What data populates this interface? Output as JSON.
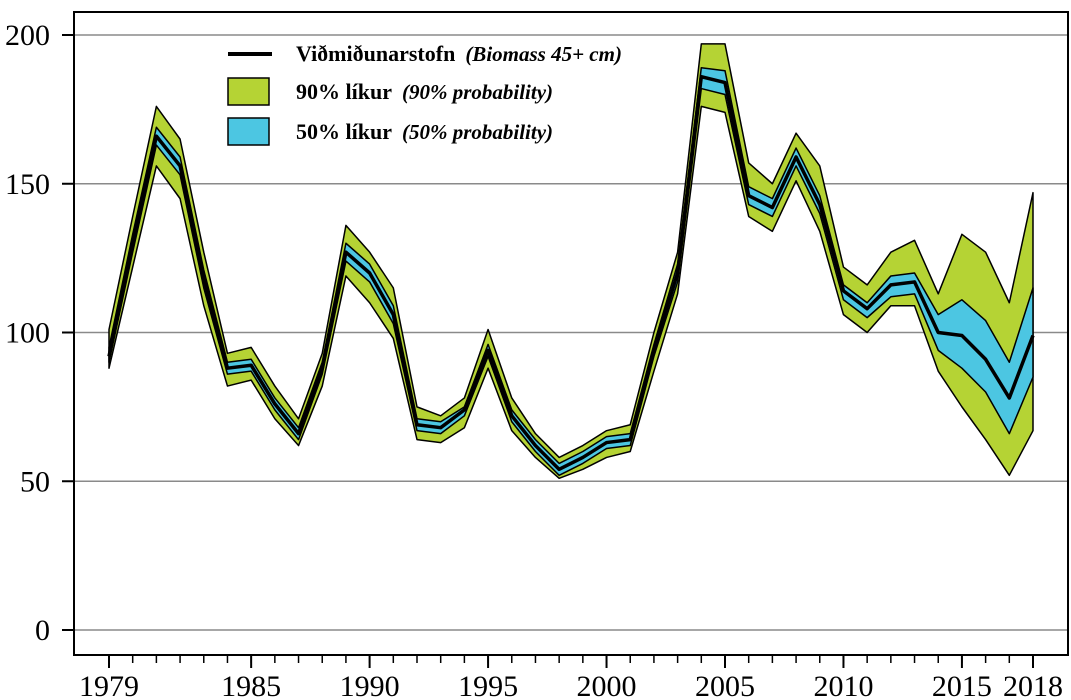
{
  "chart_data": {
    "type": "area",
    "x": [
      1979,
      1980,
      1981,
      1982,
      1983,
      1984,
      1985,
      1986,
      1987,
      1988,
      1989,
      1990,
      1991,
      1992,
      1993,
      1994,
      1995,
      1996,
      1997,
      1998,
      1999,
      2000,
      2001,
      2002,
      2003,
      2004,
      2005,
      2006,
      2007,
      2008,
      2009,
      2010,
      2011,
      2012,
      2013,
      2014,
      2015,
      2016,
      2017,
      2018
    ],
    "series": [
      {
        "name": "Viðmiðunarstofn (Biomass 45+ cm)",
        "kind": "line",
        "values": [
          92,
          130,
          166,
          156,
          118,
          88,
          89,
          76,
          66,
          88,
          127,
          120,
          106,
          69,
          68,
          74,
          94,
          72,
          62,
          54,
          58,
          63,
          64,
          94,
          120,
          186,
          184,
          146,
          142,
          159,
          143,
          114,
          108,
          116,
          117,
          100,
          99,
          91,
          78,
          99
        ]
      },
      {
        "name": "90% líkur (90% probability)",
        "kind": "band",
        "color": "#b5d334",
        "upper": [
          101,
          139,
          176,
          165,
          127,
          93,
          95,
          82,
          71,
          93,
          136,
          127,
          115,
          75,
          72,
          78,
          101,
          78,
          66,
          58,
          62,
          67,
          69,
          100,
          127,
          197,
          197,
          157,
          150,
          167,
          156,
          122,
          116,
          127,
          131,
          113,
          133,
          127,
          110,
          147
        ],
        "lower": [
          88,
          122,
          156,
          145,
          109,
          82,
          84,
          71,
          62,
          82,
          119,
          110,
          98,
          64,
          63,
          68,
          88,
          67,
          58,
          51,
          54,
          58,
          60,
          87,
          113,
          176,
          174,
          139,
          134,
          151,
          134,
          106,
          100,
          109,
          109,
          87,
          75,
          64,
          52,
          67
        ]
      },
      {
        "name": "50% líkur (50% probability)",
        "kind": "band",
        "color": "#4cc6e2",
        "upper": [
          95,
          133,
          169,
          159,
          121,
          90,
          91,
          78,
          68,
          90,
          130,
          123,
          109,
          71,
          70,
          75,
          96,
          74,
          64,
          56,
          60,
          65,
          66,
          96,
          123,
          189,
          188,
          149,
          145,
          162,
          146,
          116,
          110,
          119,
          120,
          106,
          111,
          104,
          90,
          115
        ],
        "lower": [
          90,
          127,
          163,
          153,
          115,
          86,
          87,
          74,
          64,
          86,
          124,
          117,
          103,
          67,
          66,
          72,
          92,
          70,
          60,
          52,
          56,
          61,
          62,
          92,
          117,
          182,
          180,
          143,
          139,
          156,
          140,
          111,
          105,
          112,
          113,
          94,
          88,
          80,
          66,
          85
        ]
      }
    ],
    "xticks": [
      "1979",
      "1985",
      "1990",
      "1995",
      "2000",
      "2005",
      "2010",
      "2015",
      "2018"
    ],
    "yticks": [
      "0",
      "50",
      "100",
      "150",
      "200"
    ],
    "xlim": [
      1979,
      2018
    ],
    "ylim": [
      0,
      200
    ],
    "grid": "horizontal",
    "legend_position": "top-left",
    "title": "",
    "xlabel": "",
    "ylabel": ""
  },
  "legend": [
    {
      "bold": "Viðmiðunarstofn",
      "italic": "(Biomass 45+ cm)",
      "symbol": "line",
      "color": "#000000"
    },
    {
      "bold": "90% líkur",
      "italic": "(90% probability)",
      "symbol": "box",
      "color": "#b5d334"
    },
    {
      "bold": "50% líkur",
      "italic": "(50% probability)",
      "symbol": "box",
      "color": "#4cc6e2"
    }
  ]
}
